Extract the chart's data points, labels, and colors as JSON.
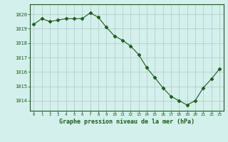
{
  "x": [
    0,
    1,
    2,
    3,
    4,
    5,
    6,
    7,
    8,
    9,
    10,
    11,
    12,
    13,
    14,
    15,
    16,
    17,
    18,
    19,
    20,
    21,
    22,
    23
  ],
  "y": [
    1019.3,
    1019.7,
    1019.5,
    1019.6,
    1019.7,
    1019.7,
    1019.7,
    1020.1,
    1019.8,
    1019.1,
    1018.5,
    1018.2,
    1017.8,
    1017.2,
    1016.3,
    1015.6,
    1014.9,
    1014.3,
    1014.0,
    1013.7,
    1014.0,
    1014.9,
    1015.5,
    1016.2
  ],
  "xlim": [
    -0.5,
    23.5
  ],
  "ylim": [
    1013.3,
    1020.7
  ],
  "yticks": [
    1014,
    1015,
    1016,
    1017,
    1018,
    1019,
    1020
  ],
  "xticks": [
    0,
    1,
    2,
    3,
    4,
    5,
    6,
    7,
    8,
    9,
    10,
    11,
    12,
    13,
    14,
    15,
    16,
    17,
    18,
    19,
    20,
    21,
    22,
    23
  ],
  "xlabel": "Graphe pression niveau de la mer (hPa)",
  "line_color": "#1a5c1a",
  "marker_color": "#1a5c1a",
  "bg_color": "#d4f0ec",
  "grid_color": "#b0c8c4",
  "tick_color": "#1a5c1a",
  "label_color": "#1a5c1a"
}
